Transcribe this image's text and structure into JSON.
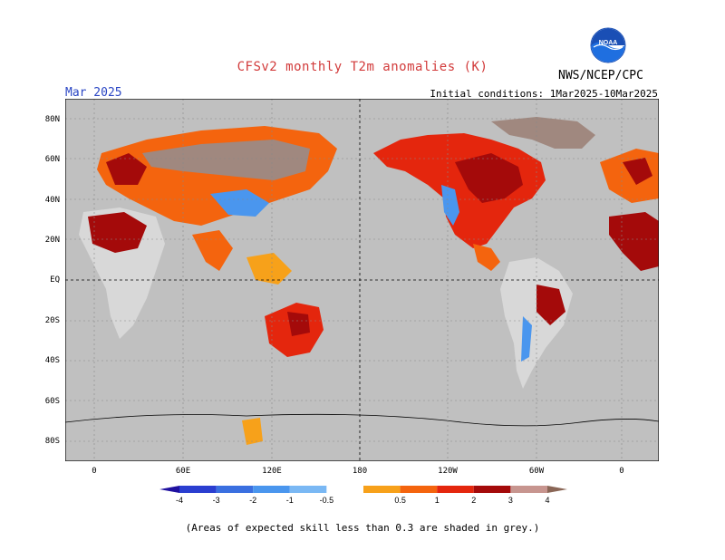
{
  "title": "CFSv2 monthly T2m anomalies (K)",
  "month": "Mar 2025",
  "initial_conditions": "Initial conditions: 1Mar2025-10Mar2025",
  "agency": "NWS/NCEP/CPC",
  "logo_text": "NOAA",
  "footnote": "(Areas of expected skill less than 0.3 are shaded in grey.)",
  "lat_labels": [
    "80N",
    "60N",
    "40N",
    "20N",
    "EQ",
    "20S",
    "40S",
    "60S",
    "80S"
  ],
  "lon_labels": [
    "0",
    "60E",
    "120E",
    "180",
    "120W",
    "60W",
    "0"
  ],
  "colorbar": {
    "labels": [
      "-4",
      "-3",
      "-2",
      "-1",
      "-0.5",
      "0.5",
      "1",
      "2",
      "3",
      "4"
    ],
    "colors": [
      "#1f10a0",
      "#2a3ed0",
      "#3a6fe0",
      "#4a96ee",
      "#7ab8f4",
      "#ffffff",
      "#f7a11a",
      "#f4640e",
      "#e4260d",
      "#a40a0a",
      "#c7958f",
      "#8a6656"
    ]
  },
  "colors": {
    "ocean": "#c0c0c0",
    "skill_grey": "#d8d8d8",
    "title_red": "#d23b3b",
    "month_blue": "#2a46c4"
  }
}
